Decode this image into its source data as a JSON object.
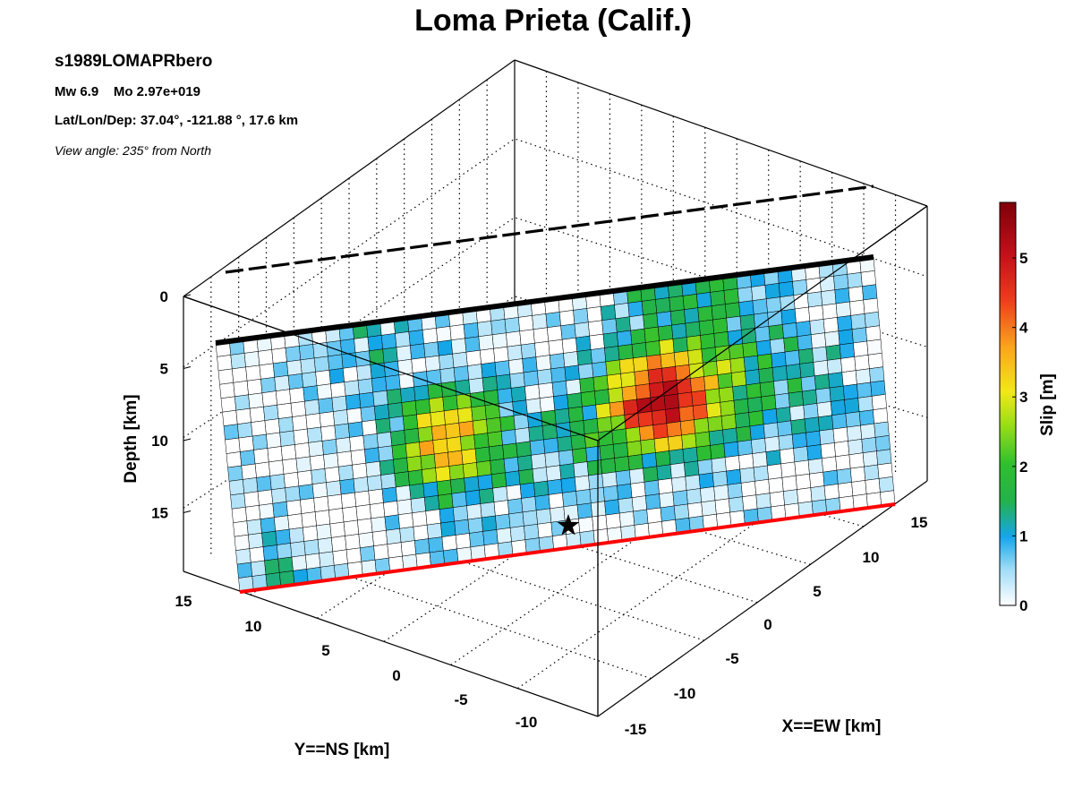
{
  "title": "Loma Prieta (Calif.)",
  "info": {
    "event_id": "s1989LOMAPRbero",
    "magnitude_label": "Mw 6.9",
    "moment_label": "Mo 2.97e+019",
    "location_label": "Lat/Lon/Dep: 37.04°, -121.88 °, 17.6 km",
    "view_label": "View angle: 235° from North"
  },
  "chart_data": {
    "type": "heatmap",
    "title": "Loma Prieta (Calif.)",
    "zlabel": "Depth [km]",
    "ylabel": "Y==NS [km]",
    "xlabel": "X==EW [km]",
    "colorbar_label": "Slip [m]",
    "colorbar_range": [
      0,
      5.8
    ],
    "colorbar_ticks": [
      "0",
      "1",
      "2",
      "3",
      "4",
      "5"
    ],
    "depth_ticks": [
      "0",
      "5",
      "10",
      "15"
    ],
    "ns_ticks": [
      "15",
      "10",
      "5",
      "0",
      "-5",
      "-10"
    ],
    "ew_ticks": [
      "-15",
      "-10",
      "-5",
      "0",
      "5",
      "10",
      "15"
    ],
    "grid_columns": 48,
    "grid_rows": 18,
    "slip_peaks": [
      {
        "along_strike_fraction": 0.66,
        "depth_fraction": 0.46,
        "slip": 5.8
      },
      {
        "along_strike_fraction": 0.33,
        "depth_fraction": 0.5,
        "slip": 4.4
      }
    ],
    "hypocenter_marker": "star",
    "fault_top_color": "#000000",
    "fault_bottom_color": "#ff0000",
    "grid": true
  }
}
